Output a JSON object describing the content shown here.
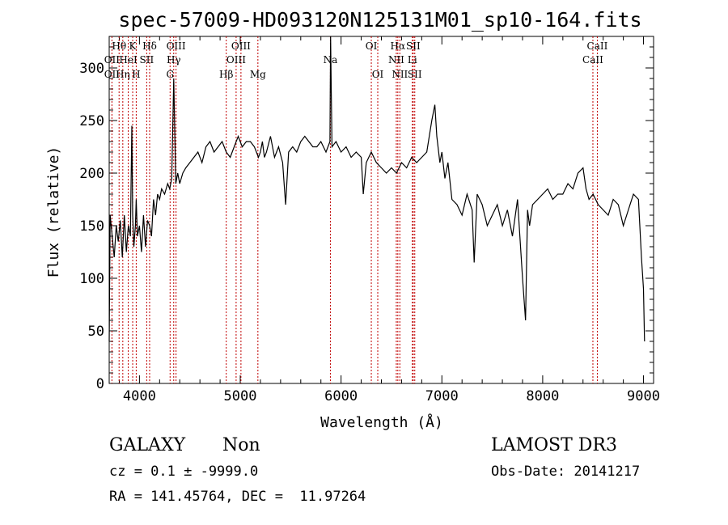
{
  "chart_data": {
    "type": "line",
    "title": "spec-57009-HD093120N125131M01_sp10-164.fits",
    "xlabel": "Wavelength (Å)",
    "ylabel": "Flux (relative)",
    "xlim": [
      3700,
      9100
    ],
    "ylim": [
      0,
      330
    ],
    "xticks": [
      4000,
      5000,
      6000,
      7000,
      8000,
      9000
    ],
    "xtick_labels": [
      "4000",
      "5000",
      "6000",
      "7000",
      "8000",
      "9000"
    ],
    "yticks": [
      0,
      50,
      100,
      150,
      200,
      250,
      300
    ],
    "ytick_labels": [
      "0",
      "50",
      "100",
      "150",
      "200",
      "250",
      "300"
    ],
    "series": [
      {
        "name": "Flux",
        "x": [
          3700,
          3710,
          3730,
          3750,
          3770,
          3790,
          3810,
          3830,
          3850,
          3870,
          3890,
          3910,
          3925,
          3933,
          3945,
          3960,
          3968,
          3980,
          4000,
          4020,
          4040,
          4060,
          4080,
          4101,
          4120,
          4140,
          4160,
          4180,
          4200,
          4220,
          4250,
          4280,
          4300,
          4320,
          4340,
          4360,
          4380,
          4400,
          4430,
          4460,
          4500,
          4540,
          4580,
          4620,
          4660,
          4700,
          4740,
          4780,
          4820,
          4861,
          4900,
          4940,
          4980,
          5020,
          5060,
          5100,
          5140,
          5180,
          5200,
          5220,
          5240,
          5260,
          5300,
          5340,
          5380,
          5420,
          5450,
          5480,
          5520,
          5560,
          5600,
          5640,
          5680,
          5720,
          5760,
          5800,
          5850,
          5890,
          5896,
          5910,
          5950,
          6000,
          6050,
          6100,
          6150,
          6200,
          6220,
          6250,
          6300,
          6350,
          6400,
          6450,
          6500,
          6550,
          6600,
          6650,
          6700,
          6750,
          6800,
          6850,
          6900,
          6930,
          6950,
          6980,
          7000,
          7030,
          7060,
          7100,
          7150,
          7200,
          7250,
          7300,
          7320,
          7350,
          7400,
          7450,
          7500,
          7550,
          7600,
          7650,
          7700,
          7750,
          7800,
          7830,
          7850,
          7870,
          7900,
          7950,
          8000,
          8050,
          8100,
          8150,
          8200,
          8250,
          8300,
          8350,
          8400,
          8430,
          8460,
          8500,
          8550,
          8600,
          8650,
          8700,
          8750,
          8800,
          8850,
          8900,
          8950,
          8980,
          9000,
          9010
        ],
        "values": [
          40,
          160,
          140,
          120,
          150,
          135,
          155,
          120,
          160,
          125,
          150,
          140,
          245,
          160,
          130,
          150,
          175,
          140,
          150,
          125,
          160,
          130,
          155,
          150,
          140,
          175,
          160,
          180,
          175,
          185,
          180,
          190,
          185,
          195,
          290,
          190,
          200,
          190,
          200,
          205,
          210,
          215,
          220,
          210,
          225,
          230,
          220,
          225,
          230,
          220,
          215,
          225,
          235,
          225,
          230,
          230,
          225,
          215,
          220,
          230,
          215,
          220,
          235,
          215,
          225,
          210,
          170,
          220,
          225,
          220,
          230,
          235,
          230,
          225,
          225,
          230,
          220,
          230,
          330,
          225,
          230,
          220,
          225,
          215,
          220,
          215,
          180,
          210,
          220,
          210,
          205,
          200,
          205,
          200,
          210,
          205,
          215,
          210,
          215,
          220,
          250,
          265,
          235,
          210,
          220,
          195,
          210,
          175,
          170,
          160,
          180,
          165,
          115,
          180,
          170,
          150,
          160,
          170,
          150,
          165,
          140,
          175,
          100,
          60,
          165,
          150,
          170,
          175,
          180,
          185,
          175,
          180,
          180,
          190,
          185,
          200,
          205,
          185,
          175,
          180,
          170,
          165,
          160,
          175,
          170,
          150,
          165,
          180,
          175,
          120,
          90,
          40
        ],
        "color": "#000000"
      }
    ],
    "annotations": [
      {
        "label": "OII",
        "x": 3727,
        "row": 3
      },
      {
        "label": "OII",
        "x": 3727,
        "row": 2
      },
      {
        "label": "Hθ",
        "x": 3798,
        "row": 1
      },
      {
        "label": "Hη",
        "x": 3835,
        "row": 3
      },
      {
        "label": "HeI",
        "x": 3889,
        "row": 2
      },
      {
        "label": "K",
        "x": 3933,
        "row": 1
      },
      {
        "label": "H",
        "x": 3968,
        "row": 3
      },
      {
        "label": "SII",
        "x": 4072,
        "row": 2
      },
      {
        "label": "Hδ",
        "x": 4101,
        "row": 1
      },
      {
        "label": "G",
        "x": 4304,
        "row": 3
      },
      {
        "label": "Hγ",
        "x": 4340,
        "row": 2
      },
      {
        "label": "OIII",
        "x": 4363,
        "row": 1
      },
      {
        "label": "Hβ",
        "x": 4861,
        "row": 3
      },
      {
        "label": "OIII",
        "x": 4959,
        "row": 2
      },
      {
        "label": "OIII",
        "x": 5007,
        "row": 1
      },
      {
        "label": "Mg",
        "x": 5175,
        "row": 3
      },
      {
        "label": "Na",
        "x": 5894,
        "row": 2
      },
      {
        "label": "OI",
        "x": 6300,
        "row": 1
      },
      {
        "label": "OI",
        "x": 6364,
        "row": 3
      },
      {
        "label": "NII",
        "x": 6548,
        "row": 2
      },
      {
        "label": "Hα",
        "x": 6563,
        "row": 1
      },
      {
        "label": "NII",
        "x": 6583,
        "row": 3
      },
      {
        "label": "Li",
        "x": 6707,
        "row": 2
      },
      {
        "label": "SII",
        "x": 6716,
        "row": 1
      },
      {
        "label": "SII",
        "x": 6731,
        "row": 3
      },
      {
        "label": "CaII",
        "x": 8498,
        "row": 2
      },
      {
        "label": "CaII",
        "x": 8542,
        "row": 1
      }
    ],
    "grid": false
  },
  "footer": {
    "object_type": "GALAXY",
    "subclass": "Non",
    "survey": "LAMOST DR3",
    "cz_line": "cz = 0.1 ± -9999.0",
    "obs_date_line": "Obs-Date: 20141217",
    "coords_line": "RA = 141.45764, DEC =  11.97264"
  }
}
